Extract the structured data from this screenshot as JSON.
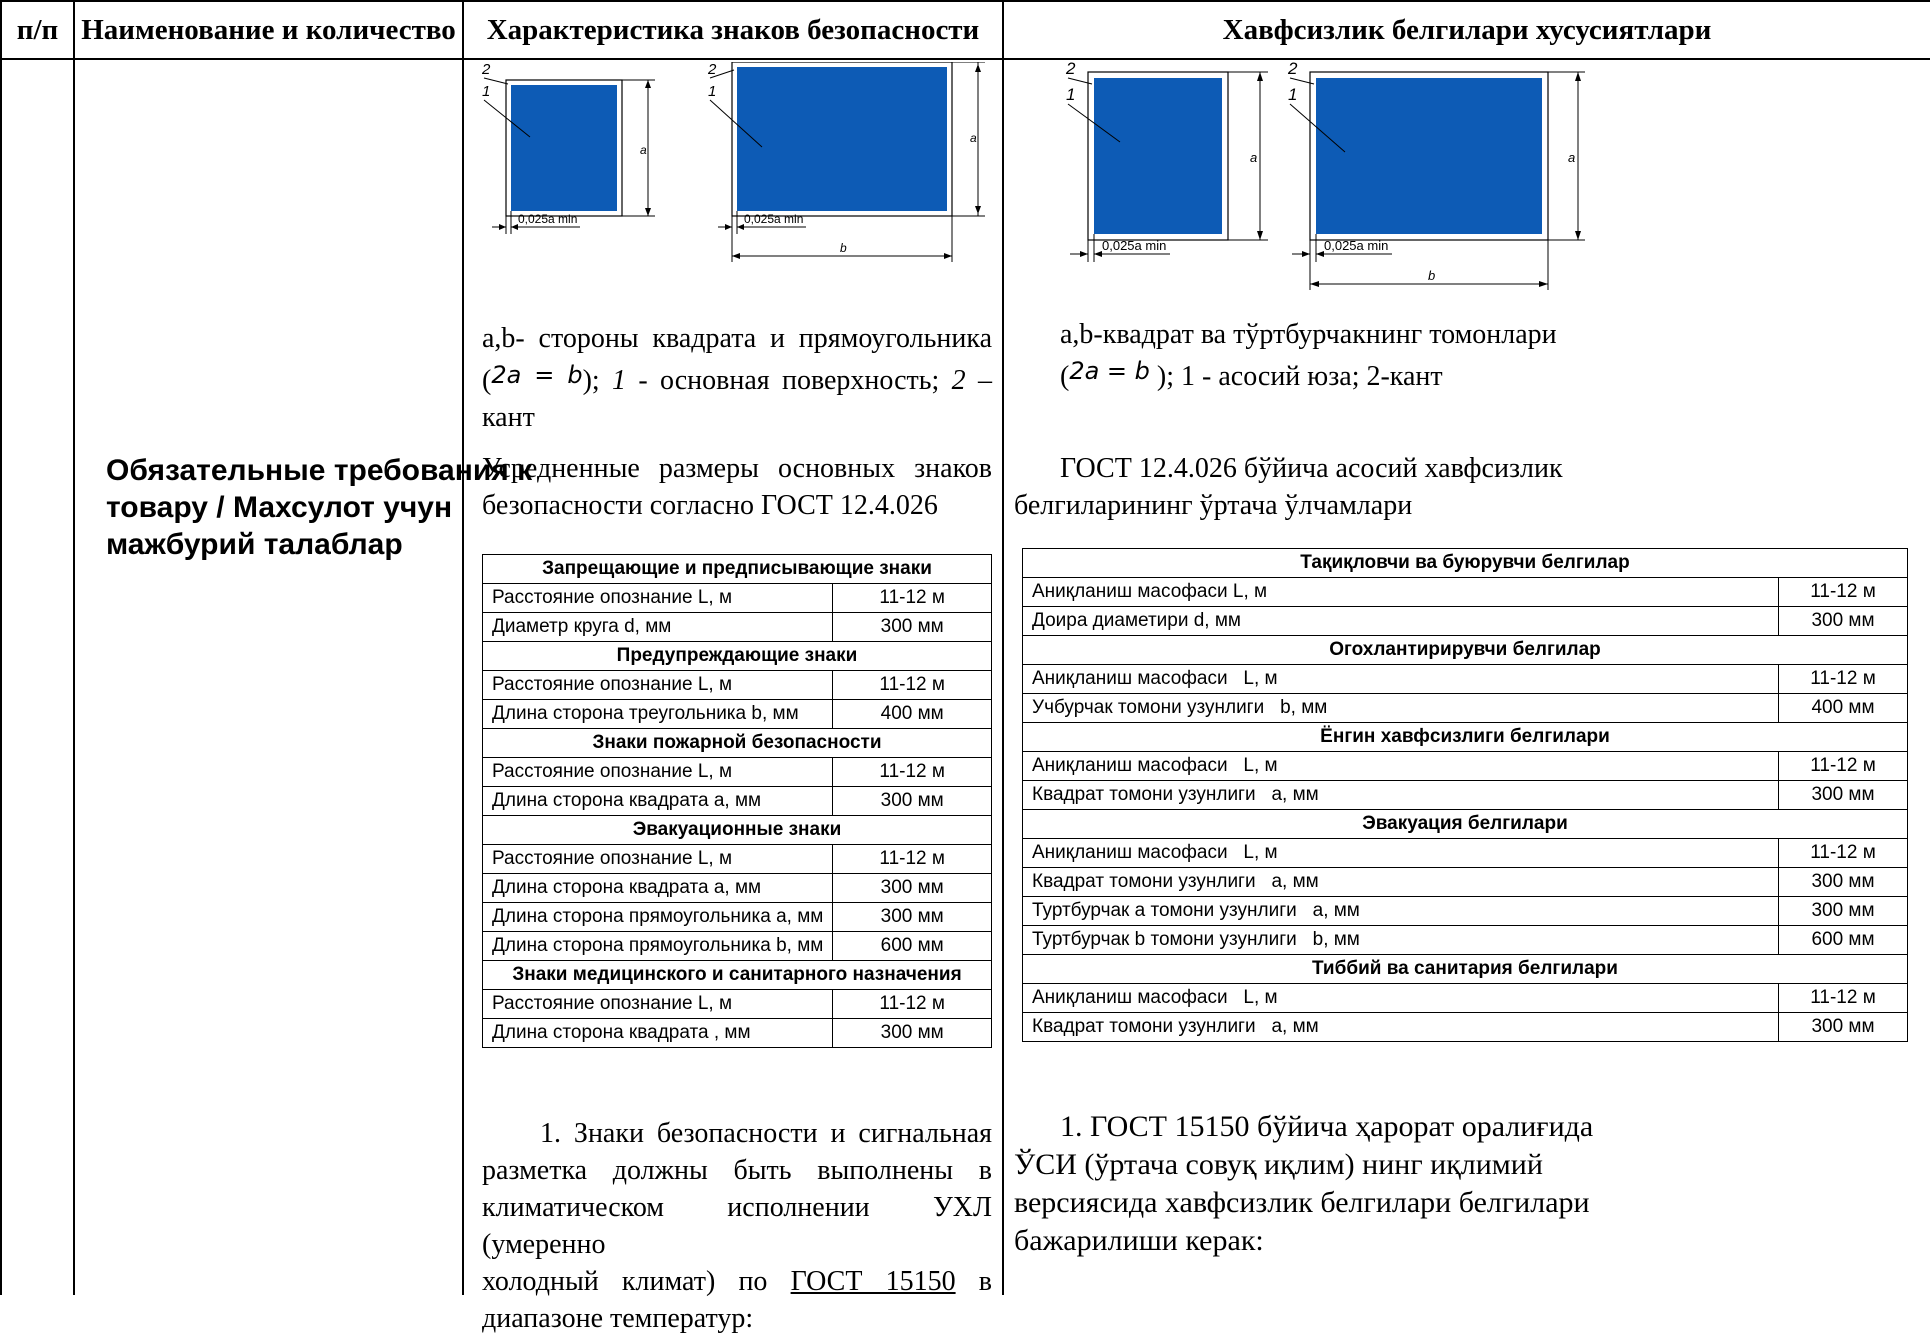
{
  "header": {
    "num": "п/п",
    "name": "Наименование и количество",
    "char_ru": "Характеристика знаков безопасности",
    "char_uz": "Хавфсизлик белгилари хусусиятлари"
  },
  "requirement_title": "Обязательные требования к товару / Махсулот учун мажбурий талаблар",
  "figure": {
    "callout_1": "1",
    "callout_2": "2",
    "dim_a": "a",
    "dim_b": "b",
    "kant_label": "0,025a min",
    "panel_color": "#0d5bb5"
  },
  "ru": {
    "caption_line1": "a,b- стороны квадрата и прямоугольника",
    "formula": "2a = b",
    "caption_p1": "); ",
    "caption_i1": "1",
    "caption_p2": " - основная поверхность; ",
    "caption_i2": "2",
    "caption_p3": " – кант",
    "avg_line1": "Усредненные размеры основных знаков",
    "avg_line2": "безопасности согласно ГОСТ 12.4.026",
    "table": [
      {
        "group": "Запрещающие и предписывающие знаки",
        "rows": [
          [
            "Расстояние опознание L, м",
            "11-12 м"
          ],
          [
            "Диаметр круга d, мм",
            "300 мм"
          ]
        ]
      },
      {
        "group": "Предупреждающие знаки",
        "rows": [
          [
            "Расстояние опознание L, м",
            "11-12 м"
          ],
          [
            "Длина сторона треугольника b, мм",
            "400 мм"
          ]
        ]
      },
      {
        "group": "Знаки пожарной безопасности",
        "rows": [
          [
            "Расстояние опознание L, м",
            "11-12 м"
          ],
          [
            "Длина сторона квадрата a, мм",
            "300 мм"
          ]
        ]
      },
      {
        "group": "Эвакуационные знаки",
        "rows": [
          [
            "Расстояние опознание L, м",
            "11-12 м"
          ],
          [
            "Длина сторона квадрата a, мм",
            "300 мм"
          ],
          [
            "Длина сторона прямоугольника a, мм",
            "300 мм"
          ],
          [
            "Длина сторона прямоугольника b, мм",
            "600 мм"
          ]
        ]
      },
      {
        "group": "Знаки медицинского и санитарного назначения",
        "rows": [
          [
            "Расстояние опознание L, м",
            "11-12 м"
          ],
          [
            "Длина сторона квадрата , мм",
            "300 мм"
          ]
        ]
      }
    ],
    "p1_line1": "1. Знаки безопасности и сигнальная",
    "p1_line2": "разметка должны быть выполнены в",
    "p1_line3": "климатическом исполнении УХЛ (умеренно",
    "p1_line4a": "холодный климат) по ",
    "p1_gost": "ГОСТ 15150",
    "p1_line4b": " в",
    "p1_line5": "диапазоне температур:"
  },
  "uz": {
    "caption_line1": "a,b-квадрат ва тўртбурчакнинг томонлари",
    "formula": "2a = b",
    "caption_rest": " ); 1 - асосий юза; 2-кант",
    "avg_line1": "ГОСТ 12.4.026 бўйича асосий хавфсизлик",
    "avg_line2": "белгиларининг ўртача ўлчамлари",
    "table": [
      {
        "group": "Тақиқловчи ва буюрувчи белгилар",
        "rows": [
          [
            "Аниқланиш масофаси L, м",
            "11-12 м"
          ],
          [
            "Доира диаметири d, мм",
            "300 мм"
          ]
        ]
      },
      {
        "group": "Огохлантирирувчи белгилар",
        "rows": [
          [
            "Аниқланиш масофаси   L, м",
            "11-12 м"
          ],
          [
            "Учбурчак томони узунлиги   b, мм",
            "400 мм"
          ]
        ]
      },
      {
        "group": "Ёнгин хавфсизлиги белгилари",
        "rows": [
          [
            "Аниқланиш масофаси   L, м",
            "11-12 м"
          ],
          [
            "Квадрат томони узунлиги   a, мм",
            "300 мм"
          ]
        ]
      },
      {
        "group": "Эвакуация белгилари",
        "rows": [
          [
            "Аниқланиш масофаси   L, м",
            "11-12 м"
          ],
          [
            "Квадрат томони узунлиги   a, мм",
            "300 мм"
          ],
          [
            "Туртбурчак a томони узунлиги   a, мм",
            "300 мм"
          ],
          [
            "Туртбурчак b томони узунлиги   b, мм",
            "600 мм"
          ]
        ]
      },
      {
        "group": "Тиббий ва санитария белгилари",
        "rows": [
          [
            "Аниқланиш масофаси   L, м",
            "11-12 м"
          ],
          [
            "Квадрат томони узунлиги   a, мм",
            "300 мм"
          ]
        ]
      }
    ],
    "p1_line1": "1. ГОСТ 15150 бўйича ҳарорат оралиғида",
    "p1_line2": "ЎСИ (ўртача совуқ иқлим) нинг иқлимий",
    "p1_line3": "версиясида хавфсизлик белгилари белгилари",
    "p1_line4": "бажарилиши керак:"
  }
}
